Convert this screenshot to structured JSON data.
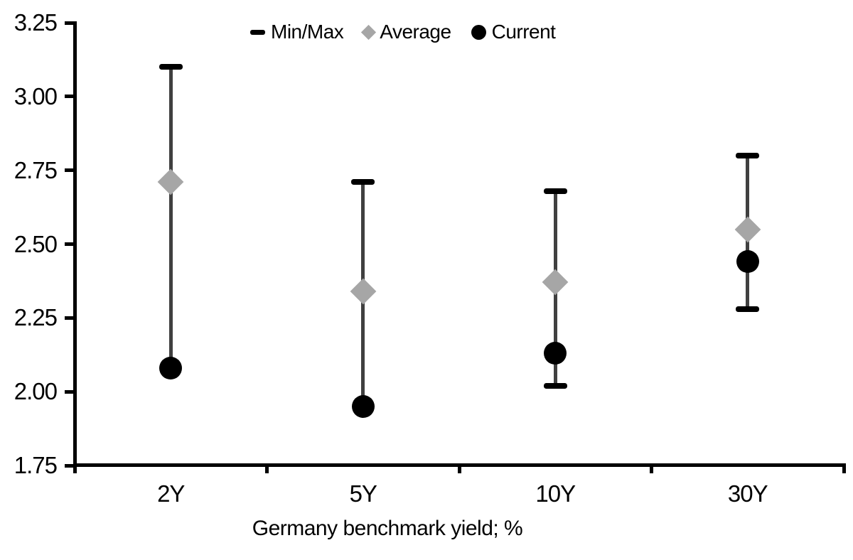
{
  "chart_data": {
    "type": "scatter",
    "title": "",
    "xlabel": "Germany benchmark yield; %",
    "ylabel": "",
    "categories": [
      "2Y",
      "5Y",
      "10Y",
      "30Y"
    ],
    "ylim": [
      1.75,
      3.25
    ],
    "yticks": [
      "3.25",
      "3.00",
      "2.75",
      "2.50",
      "2.25",
      "2.00",
      "1.75"
    ],
    "grid": false,
    "legend_position": "top-center",
    "series": [
      {
        "name": "Min/Max",
        "marker": "dash",
        "max": [
          3.1,
          2.71,
          2.68,
          2.8
        ],
        "min": [
          2.08,
          1.95,
          2.02,
          2.28
        ],
        "min_cap_visible": [
          false,
          false,
          true,
          true
        ]
      },
      {
        "name": "Average",
        "marker": "diamond",
        "values": [
          2.71,
          2.34,
          2.37,
          2.55
        ]
      },
      {
        "name": "Current",
        "marker": "circle",
        "values": [
          2.08,
          1.95,
          2.13,
          2.44
        ]
      }
    ],
    "colors": {
      "minmax": "#000000",
      "range_line": "#404040",
      "average": "#a6a6a6",
      "current": "#000000",
      "axis": "#000000",
      "text": "#000000",
      "background": "#ffffff"
    }
  }
}
